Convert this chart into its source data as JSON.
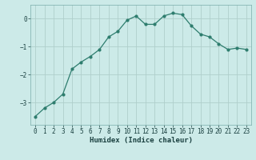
{
  "x": [
    0,
    1,
    2,
    3,
    4,
    5,
    6,
    7,
    8,
    9,
    10,
    11,
    12,
    13,
    14,
    15,
    16,
    17,
    18,
    19,
    20,
    21,
    22,
    23
  ],
  "y": [
    -3.5,
    -3.2,
    -3.0,
    -2.7,
    -1.8,
    -1.55,
    -1.35,
    -1.1,
    -0.65,
    -0.45,
    -0.05,
    0.1,
    -0.2,
    -0.2,
    0.1,
    0.2,
    0.15,
    -0.25,
    -0.55,
    -0.65,
    -0.9,
    -1.1,
    -1.05,
    -1.1
  ],
  "line_color": "#2e7d6e",
  "marker": "o",
  "marker_size": 2.0,
  "bg_color": "#cceae8",
  "grid_color": "#b0cfcc",
  "xlabel": "Humidex (Indice chaleur)",
  "ylabel": "",
  "xlim": [
    -0.5,
    23.5
  ],
  "ylim": [
    -3.8,
    0.5
  ],
  "yticks": [
    0,
    -1,
    -2,
    -3
  ],
  "xtick_labels": [
    "0",
    "1",
    "2",
    "3",
    "4",
    "5",
    "6",
    "7",
    "8",
    "9",
    "10",
    "11",
    "12",
    "13",
    "14",
    "15",
    "16",
    "17",
    "18",
    "19",
    "20",
    "21",
    "22",
    "23"
  ],
  "label_fontsize": 6.5,
  "tick_fontsize": 5.5
}
